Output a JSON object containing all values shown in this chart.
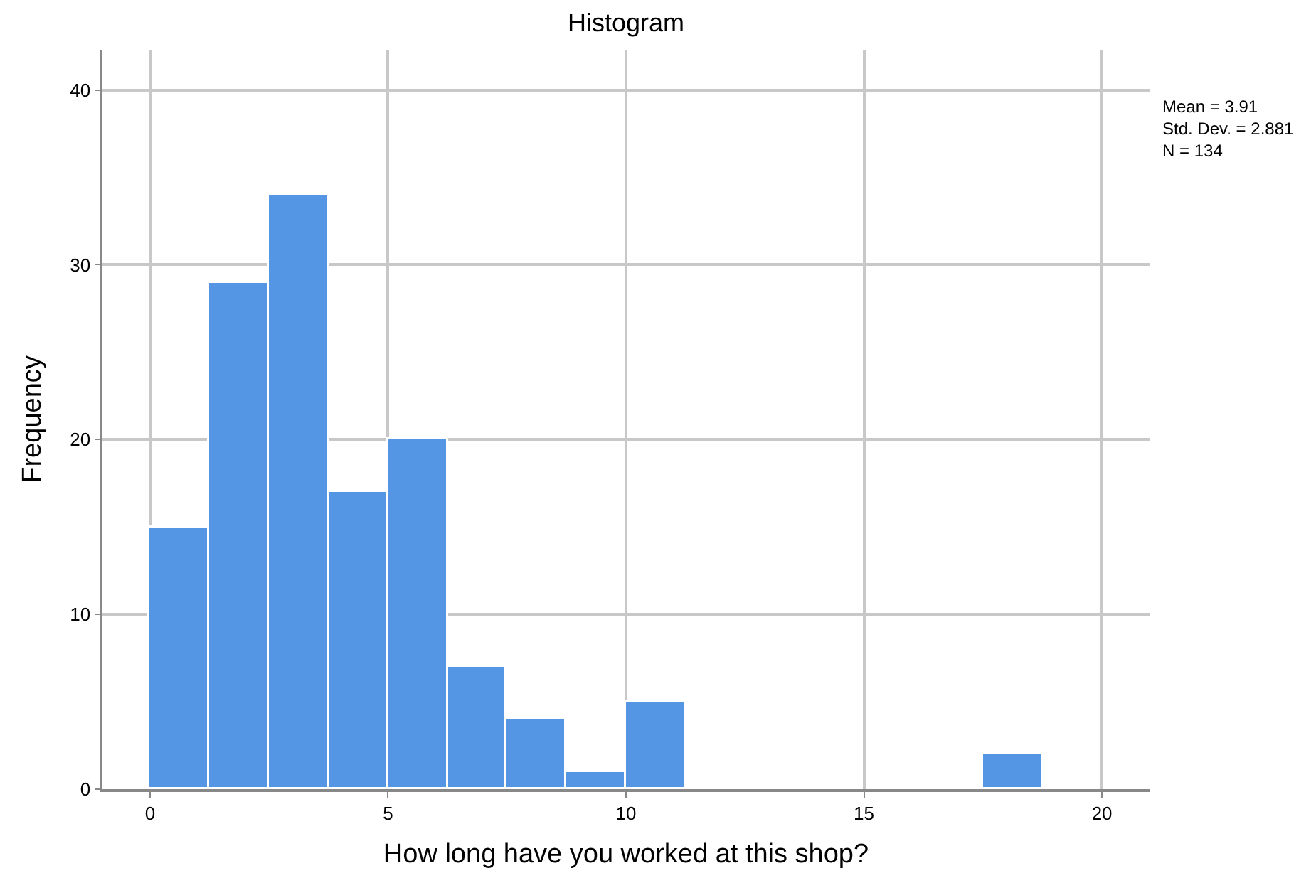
{
  "chart_data": {
    "type": "histogram",
    "title": "Histogram",
    "xlabel": "How long have you worked at this shop?",
    "ylabel": "Frequency",
    "bins": [
      0,
      1.25,
      2.5,
      3.75,
      5,
      6.25,
      7.5,
      8.75,
      10,
      11.25,
      12.5,
      13.75,
      15,
      16.25,
      17.5,
      18.75,
      20
    ],
    "values": [
      15,
      29,
      34,
      17,
      20,
      7,
      4,
      1,
      5,
      0,
      0,
      0,
      0,
      0,
      2,
      0
    ],
    "color": "#5596e4",
    "xlim": [
      -1,
      21
    ],
    "xticks": [
      0,
      5,
      10,
      15,
      20
    ],
    "ylim": [
      0,
      42.3
    ],
    "yticks": [
      0,
      10,
      20,
      30,
      40
    ],
    "grid": true,
    "annotations": [
      "Mean = 3.91\nStd. Dev. = 2.881\nN = 134"
    ]
  }
}
